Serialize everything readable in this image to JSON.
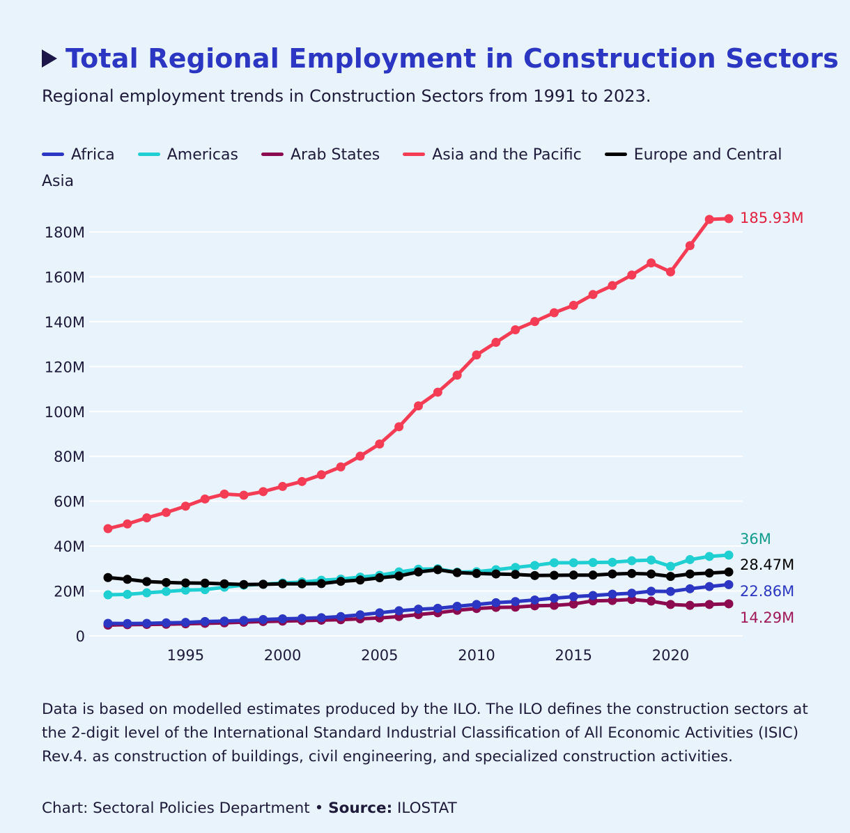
{
  "title": "Total Regional Employment in Construction Sectors",
  "subtitle": "Regional employment trends in Construction Sectors from 1991 to 2023.",
  "footnote": "Data is based on modelled estimates produced by the ILO. The ILO defines the construction sectors at the 2-digit level of the International Standard Industrial Classification of All Economic Activities (ISIC) Rev.4. as construction of buildings, civil engineering, and specialized construction activities.",
  "credit": {
    "chart_label": "Chart: Sectoral Policies Department",
    "separator": " • ",
    "source_label": "Source:",
    "source_value": " ILOSTAT"
  },
  "colors": {
    "background": "#e9f3fc",
    "gridline": "#ffffff",
    "title": "#2b36c2"
  },
  "chart_data": {
    "type": "line",
    "title": "Total Regional Employment in Construction Sectors",
    "xlabel": "",
    "ylabel": "",
    "xlim": [
      1991,
      2023
    ],
    "ylim": [
      0,
      190
    ],
    "unit": "M",
    "grid": true,
    "legend_position": "top",
    "y_ticks": [
      0,
      20,
      40,
      60,
      80,
      100,
      120,
      140,
      160,
      180
    ],
    "y_tick_labels": [
      "0",
      "20M",
      "40M",
      "60M",
      "80M",
      "100M",
      "120M",
      "140M",
      "160M",
      "180M"
    ],
    "x_ticks": [
      1995,
      2000,
      2005,
      2010,
      2015,
      2020
    ],
    "x_tick_labels": [
      "1995",
      "2000",
      "2005",
      "2010",
      "2015",
      "2020"
    ],
    "x": [
      1991,
      1992,
      1993,
      1994,
      1995,
      1996,
      1997,
      1998,
      1999,
      2000,
      2001,
      2002,
      2003,
      2004,
      2005,
      2006,
      2007,
      2008,
      2009,
      2010,
      2011,
      2012,
      2013,
      2014,
      2015,
      2016,
      2017,
      2018,
      2019,
      2020,
      2021,
      2022,
      2023
    ],
    "series": [
      {
        "name": "Africa",
        "color": "#2b36c2",
        "label_color": "#2b36c2",
        "end_label": "22.86M",
        "values": [
          5.6,
          5.5,
          5.6,
          5.8,
          6.0,
          6.4,
          6.6,
          6.9,
          7.3,
          7.6,
          7.8,
          8.1,
          8.6,
          9.4,
          10.3,
          11.2,
          11.9,
          12.3,
          13.2,
          14.0,
          14.8,
          15.3,
          16.0,
          16.8,
          17.5,
          18.0,
          18.6,
          19.0,
          19.9,
          19.8,
          21.0,
          22.0,
          22.86
        ]
      },
      {
        "name": "Americas",
        "color": "#1fcfd2",
        "label_color": "#0f9c8c",
        "end_label": "36M",
        "values": [
          18.3,
          18.5,
          19.2,
          19.8,
          20.4,
          20.6,
          21.7,
          22.6,
          23.0,
          23.6,
          24.0,
          24.8,
          25.3,
          26.2,
          27.0,
          28.5,
          29.7,
          29.9,
          28.4,
          28.6,
          29.5,
          30.5,
          31.4,
          32.6,
          32.6,
          32.7,
          32.8,
          33.5,
          33.8,
          31.0,
          34.0,
          35.4,
          36.0
        ]
      },
      {
        "name": "Arab States",
        "color": "#8c0a4f",
        "label_color": "#a0185a",
        "end_label": "14.29M",
        "values": [
          4.8,
          5.0,
          5.1,
          5.2,
          5.4,
          5.6,
          5.8,
          6.1,
          6.4,
          6.6,
          6.8,
          7.0,
          7.2,
          7.6,
          8.0,
          8.6,
          9.5,
          10.3,
          11.4,
          12.2,
          12.7,
          12.8,
          13.4,
          13.6,
          14.2,
          15.6,
          15.8,
          16.2,
          15.5,
          14.0,
          13.6,
          14.0,
          14.29
        ]
      },
      {
        "name": "Asia and the Pacific",
        "color": "#f53c55",
        "label_color": "#e0213f",
        "end_label": "185.93M",
        "values": [
          47.8,
          49.9,
          52.6,
          55.0,
          57.8,
          61.0,
          63.2,
          62.7,
          64.3,
          66.6,
          68.8,
          71.8,
          75.3,
          80.1,
          85.5,
          93.2,
          102.5,
          108.6,
          116.2,
          125.2,
          130.8,
          136.4,
          140.1,
          144.0,
          147.3,
          152.1,
          156.1,
          160.8,
          166.2,
          162.2,
          173.9,
          185.6,
          185.93
        ]
      },
      {
        "name": "Europe and Central Asia",
        "color": "#000000",
        "label_color": "#000000",
        "end_label": "28.47M",
        "values": [
          26.0,
          25.2,
          24.2,
          23.8,
          23.6,
          23.5,
          23.2,
          22.9,
          23.0,
          23.2,
          23.2,
          23.3,
          24.3,
          24.9,
          25.9,
          26.7,
          28.5,
          29.5,
          28.2,
          27.8,
          27.6,
          27.4,
          26.9,
          27.0,
          27.1,
          27.1,
          27.6,
          27.8,
          27.6,
          26.5,
          27.6,
          28.0,
          28.47
        ]
      }
    ]
  }
}
